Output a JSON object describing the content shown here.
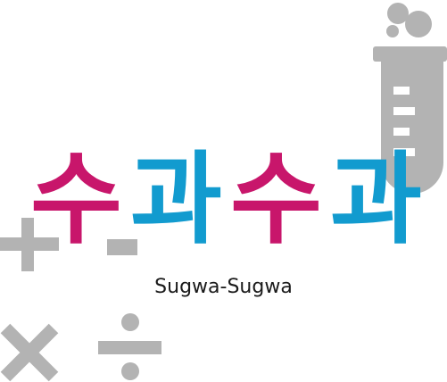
{
  "logo": {
    "wordmark": [
      "수",
      "과",
      "수",
      "과"
    ],
    "subtitle": "Sugwa-Sugwa"
  },
  "colors": {
    "magenta": "#c8166b",
    "cyan": "#129bcf",
    "gray": "#b3b3b3"
  },
  "decorations": [
    "plus-icon",
    "minus-icon",
    "multiply-icon",
    "divide-icon",
    "test-tube-icon",
    "bubble-icon"
  ]
}
